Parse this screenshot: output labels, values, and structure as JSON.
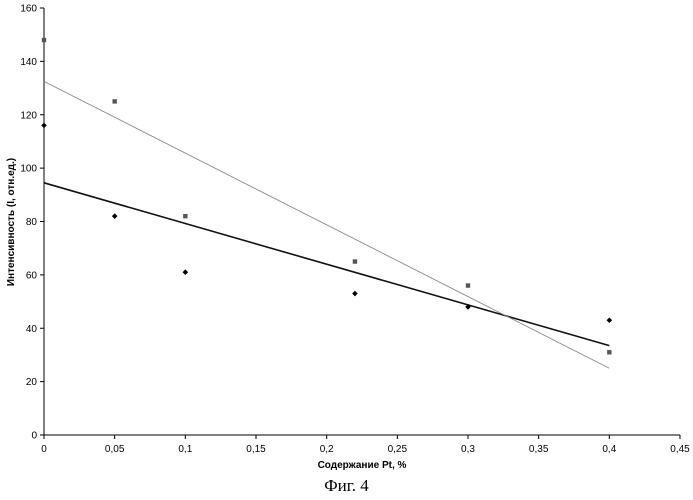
{
  "chart_data": {
    "type": "scatter",
    "title": "",
    "xlabel": "Содержание Pt, %",
    "ylabel": "Интенсивность (I, отн.ед.)",
    "xlim": [
      0,
      0.45
    ],
    "ylim": [
      0,
      160
    ],
    "x_ticks": [
      "0",
      "0,05",
      "0,1",
      "0,15",
      "0,2",
      "0,25",
      "0,3",
      "0,35",
      "0,4",
      "0,45"
    ],
    "y_ticks": [
      "0",
      "20",
      "40",
      "60",
      "80",
      "100",
      "120",
      "140",
      "160"
    ],
    "grid": false,
    "series": [
      {
        "marker": "diamond",
        "color": "#000000",
        "points": [
          [
            0,
            116
          ],
          [
            0.05,
            82
          ],
          [
            0.1,
            61
          ],
          [
            0.22,
            53
          ],
          [
            0.3,
            48
          ],
          [
            0.4,
            43
          ]
        ],
        "trendline": {
          "x": [
            0,
            0.4
          ],
          "y": [
            94.5,
            33.5
          ],
          "color": "#111111"
        }
      },
      {
        "marker": "square",
        "color": "#555555",
        "points": [
          [
            0,
            148
          ],
          [
            0.05,
            125
          ],
          [
            0.1,
            82
          ],
          [
            0.22,
            65
          ],
          [
            0.3,
            56
          ],
          [
            0.4,
            31
          ]
        ],
        "trendline": {
          "x": [
            0,
            0.4
          ],
          "y": [
            132.5,
            25
          ],
          "color": "#888888"
        }
      }
    ]
  },
  "caption": "Фиг. 4"
}
